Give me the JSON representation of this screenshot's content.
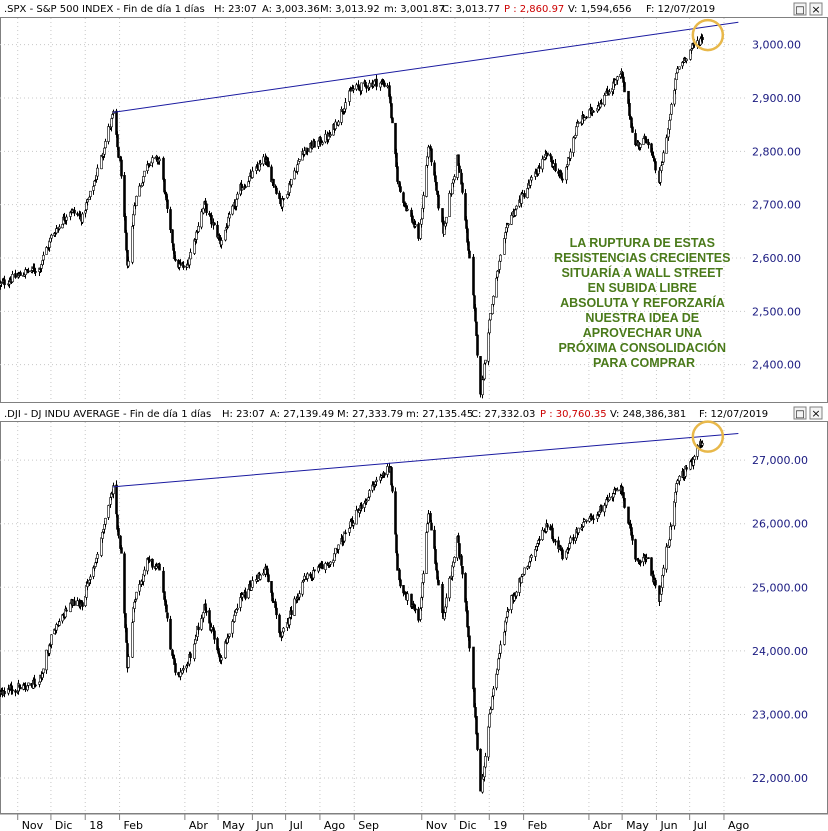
{
  "colors": {
    "price": "#000000",
    "trendline": "#1a1aa0",
    "highlight": "#e8b84a",
    "annotation": "#4a7a1a",
    "axis_text": "#1a1a80",
    "header_red": "#cc0000"
  },
  "chart_data": [
    {
      "type": "candlestick",
      "header": {
        "symbol": ".SPX - S&P 500 INDEX - Fin de día 1 días",
        "h_label": "H: 23:07",
        "a_label": "A: 3,003.36",
        "m_label": "M: 3,013.92",
        "lo_label": "m: 3,001.87",
        "c_label": "C: 3,013.77",
        "p_label": "P : 2,860.97",
        "v_label": "V: 1,594,656",
        "f_label": "F: 12/07/2019"
      },
      "ylim": [
        2330,
        3050
      ],
      "yticks": [
        "3,000.00",
        "2,900.00",
        "2,800.00",
        "2,700.00",
        "2,600.00",
        "2,500.00",
        "2,400.00"
      ],
      "ytick_values": [
        3000,
        2900,
        2800,
        2700,
        2600,
        2500,
        2400
      ],
      "xlim": [
        "2017-10-16",
        "2019-08-20"
      ],
      "anchors": [
        [
          "2017-10-16",
          2550
        ],
        [
          "2017-10-25",
          2560
        ],
        [
          "2017-11-10",
          2575
        ],
        [
          "2017-11-20",
          2580
        ],
        [
          "2017-12-01",
          2640
        ],
        [
          "2017-12-18",
          2690
        ],
        [
          "2017-12-29",
          2675
        ],
        [
          "2018-01-10",
          2750
        ],
        [
          "2018-01-26",
          2872
        ],
        [
          "2018-02-02",
          2760
        ],
        [
          "2018-02-08",
          2580
        ],
        [
          "2018-02-14",
          2700
        ],
        [
          "2018-02-26",
          2780
        ],
        [
          "2018-03-09",
          2785
        ],
        [
          "2018-03-23",
          2590
        ],
        [
          "2018-04-02",
          2580
        ],
        [
          "2018-04-18",
          2700
        ],
        [
          "2018-05-03",
          2630
        ],
        [
          "2018-05-21",
          2730
        ],
        [
          "2018-06-12",
          2785
        ],
        [
          "2018-06-27",
          2700
        ],
        [
          "2018-07-16",
          2800
        ],
        [
          "2018-08-10",
          2830
        ],
        [
          "2018-08-29",
          2915
        ],
        [
          "2018-09-20",
          2930
        ],
        [
          "2018-10-01",
          2925
        ],
        [
          "2018-10-11",
          2730
        ],
        [
          "2018-10-29",
          2640
        ],
        [
          "2018-11-07",
          2810
        ],
        [
          "2018-11-20",
          2650
        ],
        [
          "2018-12-03",
          2790
        ],
        [
          "2018-12-14",
          2600
        ],
        [
          "2018-12-24",
          2350
        ],
        [
          "2019-01-04",
          2530
        ],
        [
          "2019-01-18",
          2670
        ],
        [
          "2019-02-05",
          2735
        ],
        [
          "2019-02-22",
          2795
        ],
        [
          "2019-03-08",
          2745
        ],
        [
          "2019-03-21",
          2850
        ],
        [
          "2019-04-10",
          2890
        ],
        [
          "2019-04-30",
          2945
        ],
        [
          "2019-05-13",
          2810
        ],
        [
          "2019-05-23",
          2825
        ],
        [
          "2019-06-03",
          2745
        ],
        [
          "2019-06-20",
          2955
        ],
        [
          "2019-07-03",
          2995
        ],
        [
          "2019-07-12",
          3014
        ]
      ],
      "resistance_line": {
        "from": [
          "2018-01-26",
          2873
        ],
        "to": [
          "2019-08-14",
          3042
        ]
      },
      "highlight_circle": {
        "center": [
          "2019-07-12",
          3018
        ]
      },
      "annotation": [
        "LA RUPTURA DE ESTAS",
        "RESISTENCIAS CRECIENTES",
        "SITUARÍA A WALL STREET",
        "EN SUBIDA LIBRE",
        "ABSOLUTA Y REFORZARÍA",
        "NUESTRA IDEA DE",
        "APROVECHAR UNA",
        "PRÓXIMA CONSOLIDACIÓN",
        "PARA COMPRAR"
      ]
    },
    {
      "type": "candlestick",
      "header": {
        "symbol": ".DJI - DJ INDU AVERAGE - Fin de día 1 días",
        "h_label": "H: 23:07",
        "a_label": "A: 27,139.49",
        "m_label": "M: 27,333.79",
        "lo_label": "m: 27,135.45",
        "c_label": "C: 27,332.03",
        "p_label": "P : 30,760.35",
        "v_label": "V: 248,386,381",
        "f_label": "F: 12/07/2019"
      },
      "ylim": [
        21450,
        27600
      ],
      "yticks": [
        "27,000.00",
        "26,000.00",
        "25,000.00",
        "24,000.00",
        "23,000.00",
        "22,000.00"
      ],
      "ytick_values": [
        27000,
        26000,
        25000,
        24000,
        23000,
        22000
      ],
      "xlim": [
        "2017-10-16",
        "2019-08-20"
      ],
      "anchors": [
        [
          "2017-10-16",
          23350
        ],
        [
          "2017-10-25",
          23400
        ],
        [
          "2017-11-10",
          23450
        ],
        [
          "2017-11-20",
          23500
        ],
        [
          "2017-12-01",
          24200
        ],
        [
          "2017-12-18",
          24750
        ],
        [
          "2017-12-29",
          24750
        ],
        [
          "2018-01-10",
          25400
        ],
        [
          "2018-01-26",
          26600
        ],
        [
          "2018-02-02",
          25500
        ],
        [
          "2018-02-08",
          23800
        ],
        [
          "2018-02-14",
          24800
        ],
        [
          "2018-02-26",
          25400
        ],
        [
          "2018-03-09",
          25300
        ],
        [
          "2018-03-23",
          23600
        ],
        [
          "2018-04-02",
          23700
        ],
        [
          "2018-04-18",
          24700
        ],
        [
          "2018-05-03",
          23900
        ],
        [
          "2018-05-21",
          24800
        ],
        [
          "2018-06-12",
          25300
        ],
        [
          "2018-06-27",
          24200
        ],
        [
          "2018-07-16",
          25100
        ],
        [
          "2018-08-10",
          25400
        ],
        [
          "2018-08-29",
          26000
        ],
        [
          "2018-09-20",
          26650
        ],
        [
          "2018-10-03",
          26900
        ],
        [
          "2018-10-11",
          25100
        ],
        [
          "2018-10-29",
          24500
        ],
        [
          "2018-11-07",
          26200
        ],
        [
          "2018-11-20",
          24500
        ],
        [
          "2018-12-03",
          25800
        ],
        [
          "2018-12-14",
          24100
        ],
        [
          "2018-12-24",
          21800
        ],
        [
          "2019-01-04",
          23400
        ],
        [
          "2019-01-18",
          24700
        ],
        [
          "2019-02-05",
          25400
        ],
        [
          "2019-02-22",
          26000
        ],
        [
          "2019-03-08",
          25500
        ],
        [
          "2019-03-21",
          25900
        ],
        [
          "2019-04-10",
          26200
        ],
        [
          "2019-04-30",
          26600
        ],
        [
          "2019-05-13",
          25400
        ],
        [
          "2019-05-23",
          25500
        ],
        [
          "2019-06-03",
          24800
        ],
        [
          "2019-06-20",
          26700
        ],
        [
          "2019-07-03",
          26950
        ],
        [
          "2019-07-12",
          27330
        ]
      ],
      "resistance_line": {
        "from": [
          "2018-01-26",
          26580
        ],
        "to": [
          "2019-08-14",
          27420
        ]
      },
      "highlight_circle": {
        "center": [
          "2019-07-12",
          27370
        ]
      }
    }
  ],
  "x_axis": {
    "labels": [
      {
        "date": "2017-11-01",
        "label": "Nov"
      },
      {
        "date": "2017-12-01",
        "label": "Dic"
      },
      {
        "date": "2018-01-01",
        "label": "18"
      },
      {
        "date": "2018-02-01",
        "label": "Feb"
      },
      {
        "date": "2018-04-01",
        "label": "Abr"
      },
      {
        "date": "2018-05-01",
        "label": "May"
      },
      {
        "date": "2018-06-01",
        "label": "Jun"
      },
      {
        "date": "2018-07-01",
        "label": "Jul"
      },
      {
        "date": "2018-08-01",
        "label": "Ago"
      },
      {
        "date": "2018-09-01",
        "label": "Sep"
      },
      {
        "date": "2018-11-01",
        "label": "Nov"
      },
      {
        "date": "2018-12-01",
        "label": "Dic"
      },
      {
        "date": "2019-01-01",
        "label": "19"
      },
      {
        "date": "2019-02-01",
        "label": "Feb"
      },
      {
        "date": "2019-04-01",
        "label": "Abr"
      },
      {
        "date": "2019-05-01",
        "label": "May"
      },
      {
        "date": "2019-06-01",
        "label": "Jun"
      },
      {
        "date": "2019-07-01",
        "label": "Jul"
      },
      {
        "date": "2019-08-01",
        "label": "Ago"
      }
    ]
  },
  "window_buttons": {
    "maximize_label": "□",
    "close_label": "×"
  }
}
